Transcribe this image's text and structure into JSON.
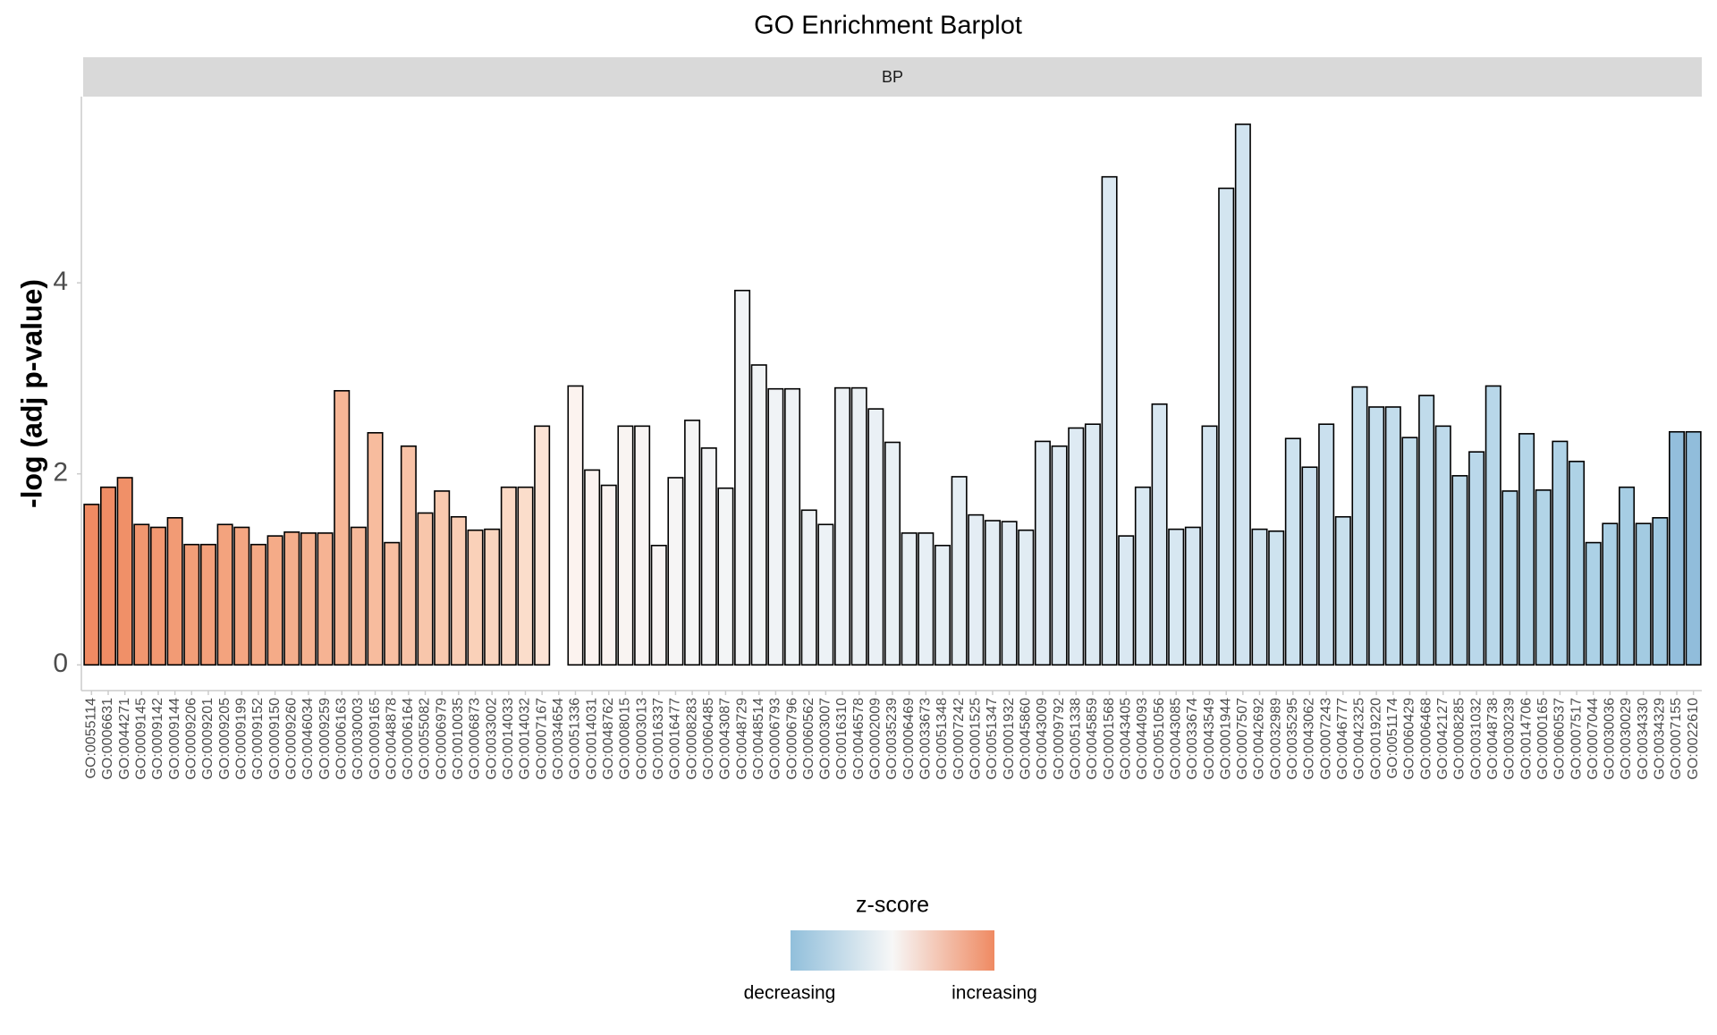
{
  "chart_data": {
    "type": "bar",
    "title": "GO Enrichment Barplot",
    "facet": "BP",
    "ylabel": "-log (adj p-value)",
    "categories": [
      "GO:0055114",
      "GO:0006631",
      "GO:0044271",
      "GO:0009145",
      "GO:0009142",
      "GO:0009144",
      "GO:0009206",
      "GO:0009201",
      "GO:0009205",
      "GO:0009199",
      "GO:0009152",
      "GO:0009150",
      "GO:0009260",
      "GO:0046034",
      "GO:0009259",
      "GO:0006163",
      "GO:0030003",
      "GO:0009165",
      "GO:0048878",
      "GO:0006164",
      "GO:0055082",
      "GO:0006979",
      "GO:0010035",
      "GO:0006873",
      "GO:0033002",
      "GO:0014033",
      "GO:0014032",
      "GO:0007167",
      "GO:0034654",
      "GO:0051336",
      "GO:0014031",
      "GO:0048762",
      "GO:0008015",
      "GO:0003013",
      "GO:0016337",
      "GO:0016477",
      "GO:0008283",
      "GO:0060485",
      "GO:0043087",
      "GO:0048729",
      "GO:0048514",
      "GO:0006793",
      "GO:0006796",
      "GO:0060562",
      "GO:0003007",
      "GO:0016310",
      "GO:0046578",
      "GO:0002009",
      "GO:0035239",
      "GO:0006469",
      "GO:0033673",
      "GO:0051348",
      "GO:0007242",
      "GO:0001525",
      "GO:0051347",
      "GO:0001932",
      "GO:0045860",
      "GO:0043009",
      "GO:0009792",
      "GO:0051338",
      "GO:0045859",
      "GO:0001568",
      "GO:0043405",
      "GO:0044093",
      "GO:0051056",
      "GO:0043085",
      "GO:0033674",
      "GO:0043549",
      "GO:0001944",
      "GO:0007507",
      "GO:0042692",
      "GO:0032989",
      "GO:0035295",
      "GO:0043062",
      "GO:0007243",
      "GO:0046777",
      "GO:0042325",
      "GO:0019220",
      "GO:0051174",
      "GO:0060429",
      "GO:0006468",
      "GO:0042127",
      "GO:0008285",
      "GO:0031032",
      "GO:0048738",
      "GO:0030239",
      "GO:0014706",
      "GO:0000165",
      "GO:0060537",
      "GO:0007517",
      "GO:0007044",
      "GO:0030036",
      "GO:0030029",
      "GO:0034330",
      "GO:0034329",
      "GO:0007155",
      "GO:0022610"
    ],
    "values": [
      1.68,
      1.86,
      1.96,
      1.47,
      1.44,
      1.54,
      1.26,
      1.26,
      1.47,
      1.44,
      1.26,
      1.35,
      1.39,
      1.38,
      1.38,
      2.87,
      1.44,
      2.43,
      1.28,
      2.29,
      1.59,
      1.82,
      1.55,
      1.41,
      1.42,
      1.86,
      1.86,
      2.5,
      0,
      2.92,
      2.04,
      1.88,
      2.5,
      2.5,
      1.25,
      1.96,
      2.56,
      2.27,
      1.85,
      3.92,
      3.14,
      2.89,
      2.89,
      1.62,
      1.47,
      2.9,
      2.9,
      2.68,
      2.33,
      1.38,
      1.38,
      1.25,
      1.97,
      1.57,
      1.51,
      1.5,
      1.41,
      2.34,
      2.29,
      2.48,
      2.52,
      5.11,
      1.35,
      1.86,
      2.73,
      1.42,
      1.44,
      2.5,
      4.99,
      5.66,
      1.42,
      1.4,
      2.37,
      2.07,
      2.52,
      1.55,
      2.91,
      2.7,
      2.7,
      2.38,
      2.82,
      2.5,
      1.98,
      2.23,
      2.92,
      1.82,
      2.42,
      1.83,
      2.34,
      2.13,
      1.28,
      1.48,
      1.86,
      1.48,
      1.54,
      2.44,
      2.44
    ],
    "colors": [
      "#ef8a62",
      "#ef8c65",
      "#f09068",
      "#f1966f",
      "#f19871",
      "#f29b75",
      "#f29e78",
      "#f3a07b",
      "#f3a37e",
      "#f4a682",
      "#f4a985",
      "#f5ab88",
      "#f5ae8c",
      "#f6b18f",
      "#f6b393",
      "#f6b696",
      "#f7b99a",
      "#f7bc9e",
      "#f8bfa2",
      "#f8c2a6",
      "#f8c6ab",
      "#f9c9af",
      "#f9cdb4",
      "#fad1b9",
      "#fad5bf",
      "#fbd9c5",
      "#fbddcb",
      "#fce3d5",
      "#fdf0ea",
      "#fcf3ef",
      "#fbf3f0",
      "#faf3f1",
      "#f9f4f2",
      "#f8f4f3",
      "#f7f4f4",
      "#f6f5f5",
      "#f5f5f5",
      "#f4f5f6",
      "#f3f5f6",
      "#f2f4f6",
      "#f1f4f6",
      "#f0f3f6",
      "#eff3f6",
      "#eef2f6",
      "#edf2f6",
      "#ecf1f5",
      "#ebf1f5",
      "#eaf0f5",
      "#e9f0f5",
      "#e8eff5",
      "#e7eff5",
      "#e6eef4",
      "#e5eef4",
      "#e4edf4",
      "#e3edf4",
      "#e2ecf4",
      "#e1ecf3",
      "#e0ebf3",
      "#dfebf3",
      "#deeaf3",
      "#ddeaf2",
      "#dce9f2",
      "#dae8f2",
      "#d9e8f2",
      "#d8e7f1",
      "#d7e7f1",
      "#d5e6f1",
      "#d4e5f0",
      "#d3e5f0",
      "#d1e4f0",
      "#d0e3ef",
      "#cee3ef",
      "#cde2ef",
      "#cbe1ee",
      "#cae0ee",
      "#c8e0ed",
      "#c6dfed",
      "#c5deed",
      "#c3ddec",
      "#c1dcec",
      "#c0dbeb",
      "#bedaeb",
      "#bcd9ea",
      "#bad8ea",
      "#b8d7e9",
      "#b6d6e9",
      "#b4d5e8",
      "#b2d4e7",
      "#b0d3e7",
      "#aed2e6",
      "#acd1e6",
      "#a9cfe5",
      "#a6cde4",
      "#a3cbe2",
      "#a0c9e1",
      "#93bedc",
      "#91bddb"
    ],
    "ylim": [
      -0.26,
      5.95
    ],
    "yticks": [
      0,
      2,
      4
    ],
    "legend": {
      "title": "z-score",
      "low": "decreasing",
      "high": "increasing",
      "colors": [
        "#91bfdb",
        "#f7f7f7",
        "#ef8a62"
      ]
    }
  }
}
